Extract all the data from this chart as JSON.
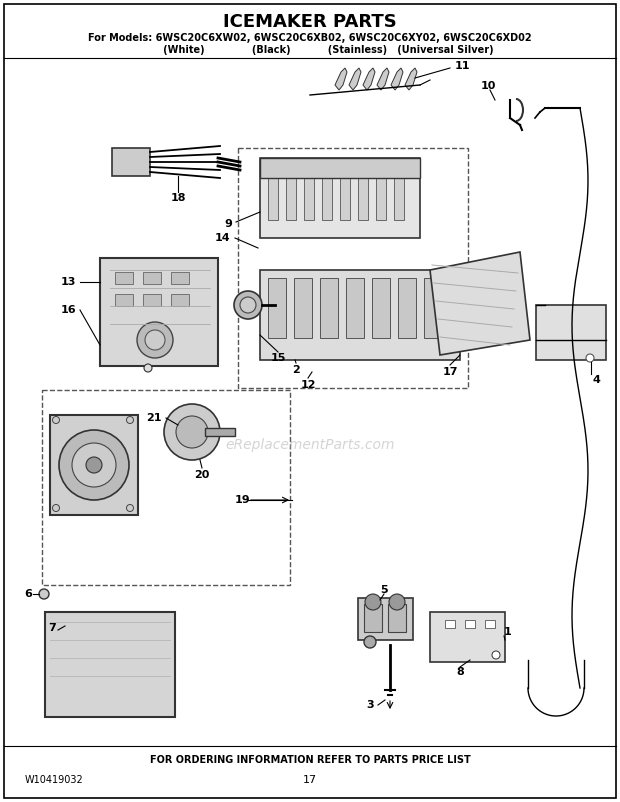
{
  "title": "ICEMAKER PARTS",
  "subtitle_line1": "For Models: 6WSC20C6XW02, 6WSC20C6XB02, 6WSC20C6XY02, 6WSC20C6XD02",
  "subtitle_line2": "           (White)              (Black)           (Stainless)   (Universal Silver)",
  "footer_text": "FOR ORDERING INFORMATION REFER TO PARTS PRICE LIST",
  "doc_number": "W10419032",
  "page_number": "17",
  "bg_color": "#ffffff",
  "watermark_text": "eReplacementParts.com",
  "figsize": [
    6.2,
    8.02
  ],
  "dpi": 100
}
